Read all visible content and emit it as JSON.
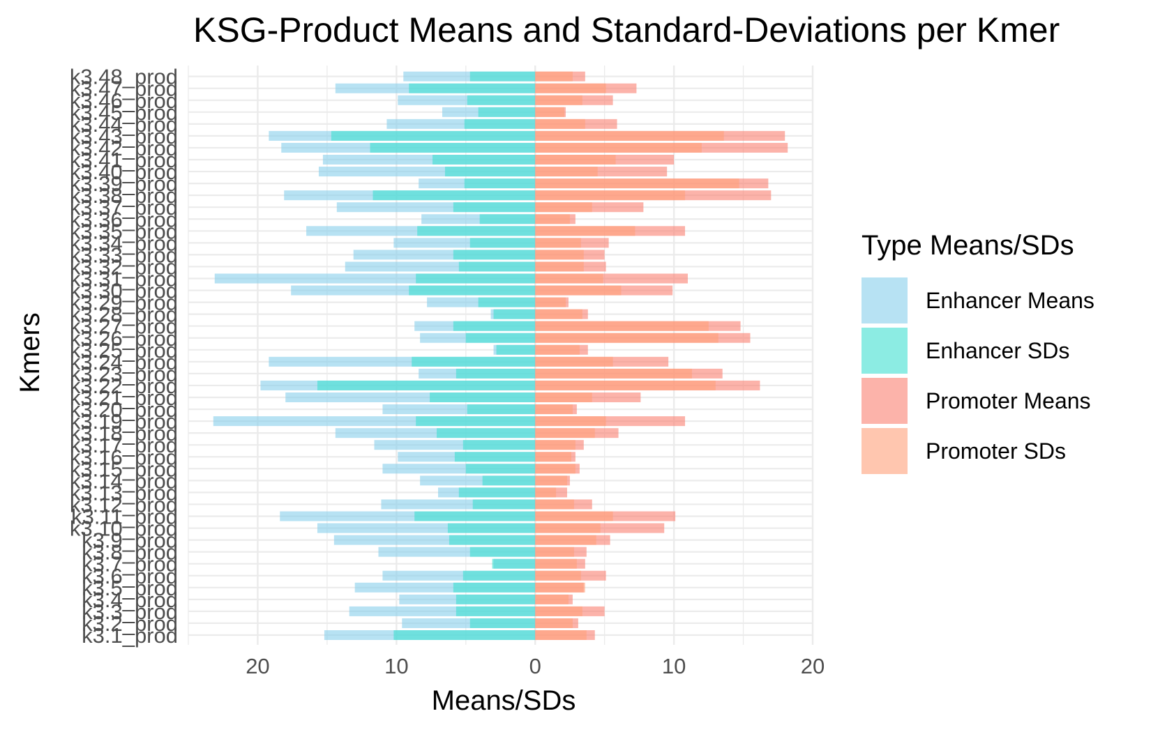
{
  "chart_data": {
    "type": "bar",
    "title": "KSG-Product Means and Standard-Deviations per Kmer",
    "xlabel": "Means/SDs",
    "ylabel": "Kmers",
    "xlim": [
      -25,
      20
    ],
    "x_ticks": [
      -20,
      -10,
      0,
      10,
      20
    ],
    "x_tick_labels": [
      "20",
      "10",
      "0",
      "10",
      "20"
    ],
    "grid": true,
    "legend_position": "right",
    "legend_title": "Type Means/SDs",
    "categories": [
      "k3.1_prod",
      "k3.2_prod",
      "k3.3_prod",
      "k3.4_prod",
      "k3.5_prod",
      "k3.6_prod",
      "k3.7_prod",
      "k3.8_prod",
      "k3.9_prod",
      "k3.10_prod",
      "k3.11_prod",
      "k3.12_prod",
      "k3.13_prod",
      "k3.14_prod",
      "k3.15_prod",
      "k3.16_prod",
      "k3.17_prod",
      "k3.18_prod",
      "k3.19_prod",
      "k3.20_prod",
      "k3.21_prod",
      "k3.22_prod",
      "k3.23_prod",
      "k3.24_prod",
      "k3.25_prod",
      "k3.26_prod",
      "k3.27_prod",
      "k3.28_prod",
      "k3.29_prod",
      "k3.30_prod",
      "k3.31_prod",
      "k3.32_prod",
      "k3.33_prod",
      "k3.34_prod",
      "k3.35_prod",
      "k3.36_prod",
      "k3.37_prod",
      "k3.38_prod",
      "k3.39_prod",
      "k3.40_prod",
      "k3.41_prod",
      "k3.42_prod",
      "k3.43_prod",
      "k3.44_prod",
      "k3.45_prod",
      "k3.46_prod",
      "k3.47_prod",
      "k3.48_prod"
    ],
    "series": [
      {
        "name": "Enhancer Means",
        "color": "#87ceeb",
        "values": [
          -15.2,
          -9.6,
          -13.4,
          -9.8,
          -13.0,
          -11.0,
          -3.0,
          -11.3,
          -14.5,
          -15.7,
          -18.4,
          -11.1,
          -7.0,
          -8.3,
          -11.0,
          -9.9,
          -11.6,
          -14.4,
          -23.2,
          -11.0,
          -18.0,
          -19.8,
          -8.4,
          -19.2,
          -3.0,
          -8.3,
          -8.7,
          -3.2,
          -7.8,
          -17.6,
          -23.1,
          -13.7,
          -13.1,
          -10.2,
          -16.5,
          -8.2,
          -14.3,
          -18.1,
          -8.4,
          -15.6,
          -15.3,
          -18.3,
          -19.2,
          -10.7,
          -6.7,
          -9.9,
          -14.4,
          -9.5
        ]
      },
      {
        "name": "Enhancer SDs",
        "color": "#40e0d0",
        "values": [
          -10.2,
          -4.7,
          -5.7,
          -5.7,
          -5.9,
          -5.2,
          -3.1,
          -4.7,
          -6.2,
          -6.3,
          -8.7,
          -4.5,
          -5.5,
          -3.8,
          -5.0,
          -5.8,
          -5.2,
          -7.1,
          -8.6,
          -4.9,
          -7.6,
          -15.7,
          -5.7,
          -8.9,
          -2.8,
          -5.0,
          -5.9,
          -3.0,
          -4.1,
          -9.1,
          -8.6,
          -5.5,
          -5.9,
          -4.7,
          -8.5,
          -4.0,
          -5.9,
          -11.7,
          -5.1,
          -6.5,
          -7.4,
          -11.9,
          -14.7,
          -5.1,
          -4.1,
          -4.9,
          -9.1,
          -4.7
        ]
      },
      {
        "name": "Promoter Means",
        "color": "#fa8072",
        "values": [
          4.3,
          3.1,
          5.0,
          2.7,
          3.5,
          5.1,
          3.6,
          3.7,
          5.4,
          9.3,
          10.1,
          4.1,
          2.3,
          2.5,
          3.2,
          2.9,
          3.5,
          6.0,
          10.8,
          3.0,
          7.6,
          16.2,
          13.5,
          9.6,
          3.8,
          15.5,
          14.8,
          3.8,
          2.4,
          9.9,
          11.0,
          5.1,
          5.0,
          5.3,
          10.8,
          2.9,
          7.8,
          17.0,
          16.8,
          9.5,
          10.0,
          18.2,
          18.0,
          5.9,
          2.2,
          5.6,
          7.3,
          3.6
        ]
      },
      {
        "name": "Promoter SDs",
        "color": "#ffa07a",
        "values": [
          3.7,
          2.7,
          3.4,
          2.4,
          3.6,
          3.3,
          3.0,
          2.8,
          4.4,
          4.7,
          5.6,
          2.8,
          1.5,
          2.3,
          2.9,
          2.6,
          2.9,
          4.3,
          5.1,
          2.7,
          4.1,
          13.0,
          11.3,
          5.6,
          3.2,
          13.2,
          12.5,
          3.4,
          2.2,
          6.2,
          4.9,
          3.5,
          3.5,
          3.3,
          7.2,
          2.5,
          4.1,
          10.8,
          14.7,
          4.5,
          5.8,
          12.0,
          13.6,
          3.6,
          2.1,
          3.4,
          5.1,
          2.7
        ]
      }
    ]
  }
}
